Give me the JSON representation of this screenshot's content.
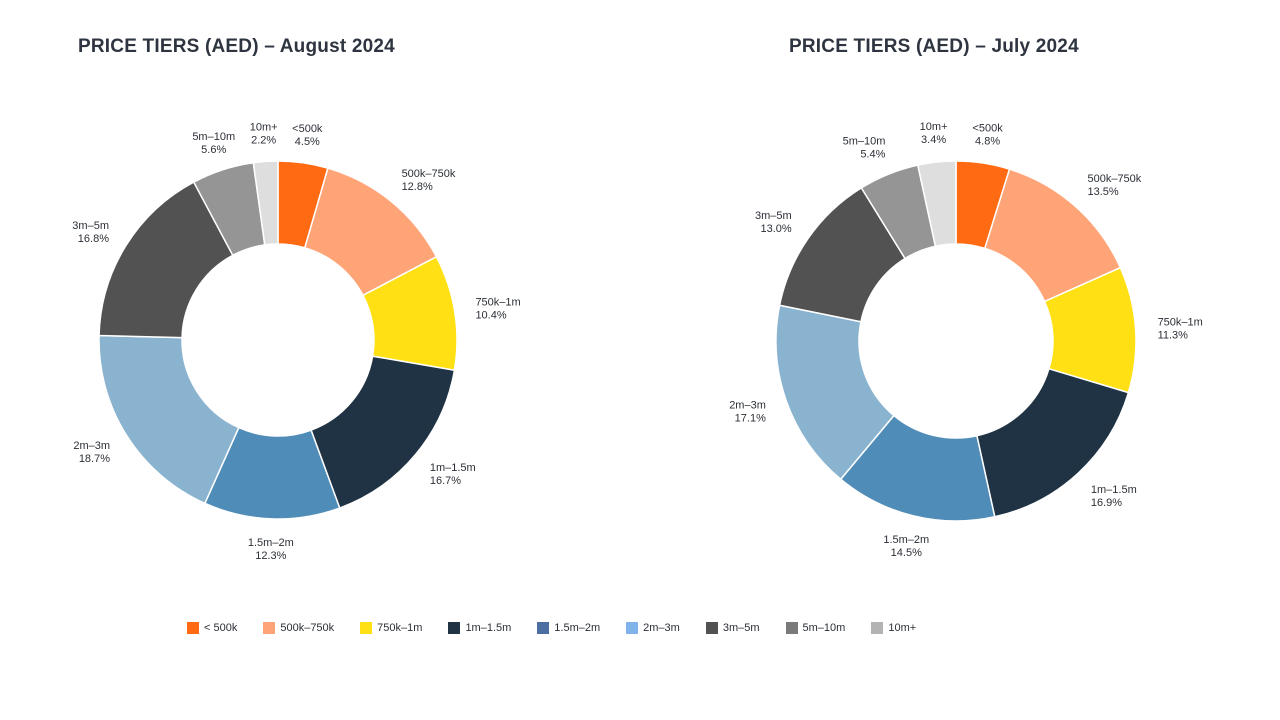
{
  "chart_data": [
    {
      "type": "pie",
      "title": "PRICE TIERS (AED) – August 2024",
      "categories": [
        "<500k",
        "500k–750k",
        "750k–1m",
        "1m–1.5m",
        "1.5m–2m",
        "2m–3m",
        "3m–5m",
        "5m–10m",
        "10m+"
      ],
      "values": [
        4.5,
        12.8,
        10.4,
        16.7,
        12.3,
        18.7,
        16.8,
        5.6,
        2.2
      ],
      "value_labels": [
        "4.5%",
        "12.8%",
        "10.4%",
        "16.7%",
        "12.3%",
        "18.7%",
        "16.8%",
        "5.6%",
        "2.2%"
      ],
      "colors": [
        "#ff6a13",
        "#ffa477",
        "#ffe015",
        "#1f3344",
        "#4f8db8",
        "#8ab3cf",
        "#525252",
        "#959595",
        "#dedede"
      ],
      "donut": true
    },
    {
      "type": "pie",
      "title": "PRICE TIERS (AED) – July 2024",
      "categories": [
        "<500k",
        "500k–750k",
        "750k–1m",
        "1m–1.5m",
        "1.5m–2m",
        "2m–3m",
        "3m–5m",
        "5m–10m",
        "10m+"
      ],
      "values": [
        4.8,
        13.5,
        11.3,
        16.9,
        14.5,
        17.1,
        13.0,
        5.4,
        3.4
      ],
      "value_labels": [
        "4.8%",
        "13.5%",
        "11.3%",
        "16.9%",
        "14.5%",
        "17.1%",
        "13.0%",
        "5.4%",
        "3.4%"
      ],
      "colors": [
        "#ff6a13",
        "#ffa477",
        "#ffe015",
        "#1f3344",
        "#4f8db8",
        "#8ab3cf",
        "#525252",
        "#959595",
        "#dedede"
      ],
      "donut": true
    }
  ],
  "legend": {
    "placement": "bottom",
    "items": [
      {
        "label": "< 500k",
        "color": "#ff6a13"
      },
      {
        "label": "500k–750k",
        "color": "#ffa477"
      },
      {
        "label": "750k–1m",
        "color": "#ffe015"
      },
      {
        "label": "1m–1.5m",
        "color": "#1f3344"
      },
      {
        "label": "1.5m–2m",
        "color": "#4a6fa0"
      },
      {
        "label": "2m–3m",
        "color": "#7fb3ea"
      },
      {
        "label": "3m–5m",
        "color": "#525252"
      },
      {
        "label": "5m–10m",
        "color": "#7a7a7a"
      },
      {
        "label": "10m+",
        "color": "#b3b3b3"
      }
    ]
  }
}
